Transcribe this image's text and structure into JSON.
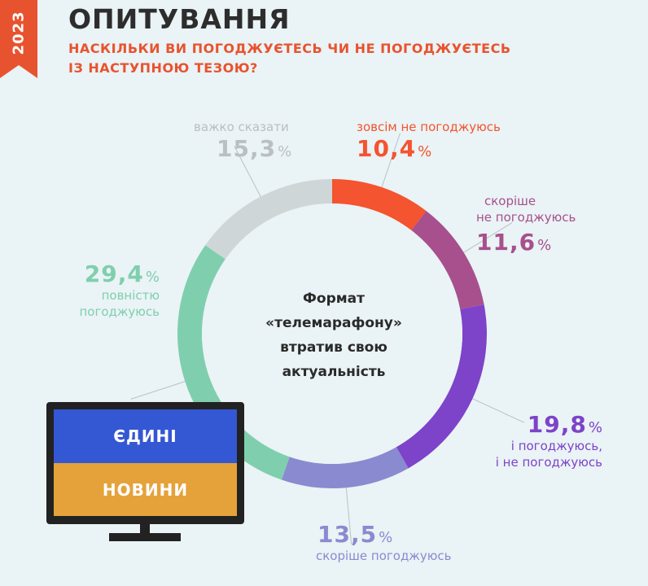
{
  "badge": {
    "year": "2023",
    "color": "#e8532f"
  },
  "header": {
    "title": "ОПИТУВАННЯ",
    "subtitle_line1": "НАСКІЛЬКИ ВИ ПОГОДЖУЄТЕСЬ ЧИ НЕ ПОГОДЖУЄТЕСЬ",
    "subtitle_line2": "ІЗ НАСТУПНОЮ ТЕЗОЮ?"
  },
  "center": {
    "line1": "Формат",
    "line2": "«телемарафону»",
    "line3": "втратив свою",
    "line4": "актуальність"
  },
  "tv": {
    "top_text": "ЄДИНІ",
    "bottom_text": "НОВИНИ"
  },
  "chart_data": {
    "type": "pie",
    "variant": "donut",
    "unit": "%",
    "slices": [
      {
        "label": "зовсім не погоджуюсь",
        "value": 10.4,
        "display": "10,4",
        "color": "#f4542f"
      },
      {
        "label": "скоріше не погоджуюсь",
        "value": 11.6,
        "display": "11,6",
        "color": "#a7508d"
      },
      {
        "label": "і погоджуюсь, і не погоджуюсь",
        "value": 19.8,
        "display": "19,8",
        "color": "#7d43c9"
      },
      {
        "label": "скоріше погоджуюсь",
        "value": 13.5,
        "display": "13,5",
        "color": "#8a8ad0"
      },
      {
        "label": "повністю погоджуюсь",
        "value": 29.4,
        "display": "29,4",
        "color": "#7fcfae"
      },
      {
        "label": "важко сказати",
        "value": 15.3,
        "display": "15,3",
        "color": "#cfd6d8"
      }
    ]
  }
}
